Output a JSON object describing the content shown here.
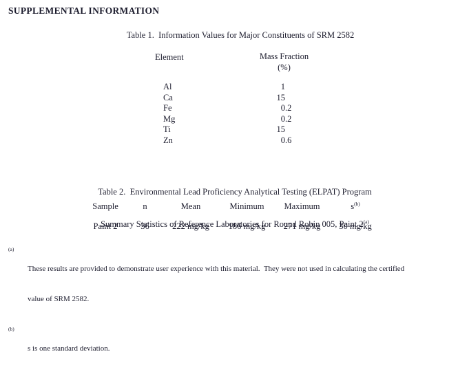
{
  "page": {
    "title": "SUPPLEMENTAL INFORMATION"
  },
  "colors": {
    "text": "#1d1d2e",
    "background": "#ffffff"
  },
  "table1": {
    "caption": "Table 1.  Information Values for Major Constituents of SRM 2582",
    "columns": {
      "element": "Element",
      "mass_fraction": "Mass Fraction",
      "mass_fraction_unit": "(%)"
    },
    "rows": [
      {
        "element": "Al",
        "value": "1"
      },
      {
        "element": "Ca",
        "value": "15"
      },
      {
        "element": "Fe",
        "value": "0.2"
      },
      {
        "element": "Mg",
        "value": "0.2"
      },
      {
        "element": "Ti",
        "value": "15"
      },
      {
        "element": "Zn",
        "value": "0.6"
      }
    ]
  },
  "table2": {
    "caption_line1": "Table 2.  Environmental Lead Proficiency Analytical Testing (ELPAT) Program",
    "caption_line2": "Summary Statistics of Reference Laboratories for Round Robin 005, Paint 2",
    "caption_line2_sup": "(a)",
    "headers": {
      "sample": "Sample",
      "n": "n",
      "mean": "Mean",
      "minimum": "Minimum",
      "maximum": "Maximum",
      "s": "s",
      "s_sup": "(b)"
    },
    "row": {
      "sample": "Paint 2",
      "n": "36",
      "mean": "222 mg/kg",
      "minimum": "186 mg/kg",
      "maximum": "271 mg/kg",
      "s": "30 mg/kg"
    }
  },
  "footnotes": [
    {
      "marker": "(a)",
      "lines": [
        "These results are provided to demonstrate user experience with this material.  They were not used in calculating the certified",
        "value of SRM 2582."
      ]
    },
    {
      "marker": "(b)",
      "lines": [
        "s is one standard deviation."
      ]
    }
  ]
}
